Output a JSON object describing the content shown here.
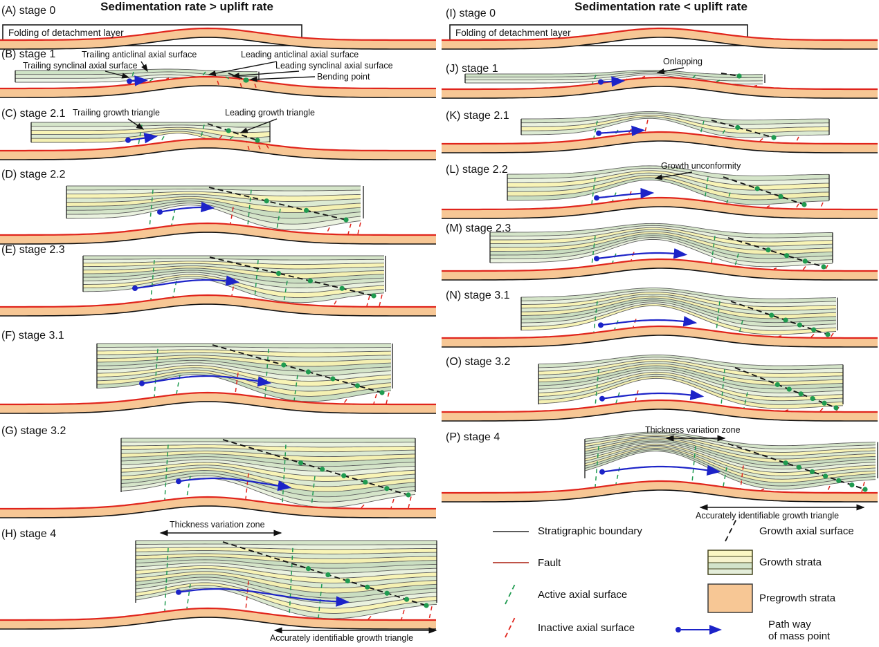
{
  "titles": {
    "left": "Sedimentation rate > uplift rate",
    "right": "Sedimentation rate < uplift rate"
  },
  "panels": [
    {
      "id": "A",
      "label": "(A) stage 0",
      "annotations": [
        {
          "text": "Folding of detachment layer"
        }
      ]
    },
    {
      "id": "B",
      "label": "(B) stage 1",
      "annotations": [
        {
          "text": "Trailing anticlinal axial surface"
        },
        {
          "text": "Leading anticlinal axial surface"
        },
        {
          "text": "Trailing synclinal axial surface"
        },
        {
          "text": "Leading synclinal axial surface"
        },
        {
          "text": "Bending point"
        }
      ]
    },
    {
      "id": "C",
      "label": "(C) stage 2.1",
      "annotations": [
        {
          "text": "Trailing growth triangle"
        },
        {
          "text": "Leading growth triangle"
        }
      ]
    },
    {
      "id": "D",
      "label": "(D) stage 2.2",
      "annotations": []
    },
    {
      "id": "E",
      "label": "(E) stage 2.3",
      "annotations": []
    },
    {
      "id": "F",
      "label": "(F) stage 3.1",
      "annotations": []
    },
    {
      "id": "G",
      "label": "(G) stage 3.2",
      "annotations": []
    },
    {
      "id": "H",
      "label": "(H) stage 4",
      "annotations": [
        {
          "text": "Thickness variation zone"
        },
        {
          "text": "Accurately identifiable growth triangle"
        }
      ]
    },
    {
      "id": "I",
      "label": "(I) stage 0",
      "annotations": [
        {
          "text": "Folding of detachment layer"
        }
      ]
    },
    {
      "id": "J",
      "label": "(J) stage 1",
      "annotations": [
        {
          "text": "Onlapping"
        }
      ]
    },
    {
      "id": "K",
      "label": "(K) stage 2.1",
      "annotations": []
    },
    {
      "id": "L",
      "label": "(L) stage 2.2",
      "annotations": [
        {
          "text": "Growth unconformity"
        }
      ]
    },
    {
      "id": "M",
      "label": "(M) stage 2.3",
      "annotations": []
    },
    {
      "id": "N",
      "label": "(N) stage 3.1",
      "annotations": []
    },
    {
      "id": "O",
      "label": "(O) stage 3.2",
      "annotations": []
    },
    {
      "id": "P",
      "label": "(P) stage 4",
      "annotations": [
        {
          "text": "Thickness variation zone"
        },
        {
          "text": "Accurately identifiable growth triangle"
        }
      ]
    }
  ],
  "legend": {
    "items": [
      {
        "icon": "stratigraphic-boundary-line",
        "label": "Stratigraphic boundary"
      },
      {
        "icon": "growth-axial-surface-dashes",
        "label": "Growth axial surface"
      },
      {
        "icon": "fault-line",
        "label": "Fault"
      },
      {
        "icon": "growth-strata-swatch",
        "label": "Growth strata"
      },
      {
        "icon": "active-axial-surface-dashes",
        "label": "Active axial surface"
      },
      {
        "icon": "pregrowth-strata-swatch",
        "label": "Pregrowth strata"
      },
      {
        "icon": "inactive-axial-surface-dashes",
        "label": "Inactive axial surface"
      },
      {
        "icon": "mass-point-path-arrow",
        "label": "Path way",
        "label2": "of mass point"
      }
    ]
  },
  "colors": {
    "fault": "#e0241c",
    "pregrowth": "#f7c795",
    "active_axial": "#1f9b50",
    "inactive_axial": "#e0241c",
    "growth_axial": "#141414",
    "stratigraphic": "#444444",
    "mass_path": "#1c23c8",
    "growth_dot": "#1f9b50",
    "layer_outline": "#5f5f5f",
    "growth_yellow": "#f8f4b6",
    "growth_green": "#d5e5c9"
  }
}
